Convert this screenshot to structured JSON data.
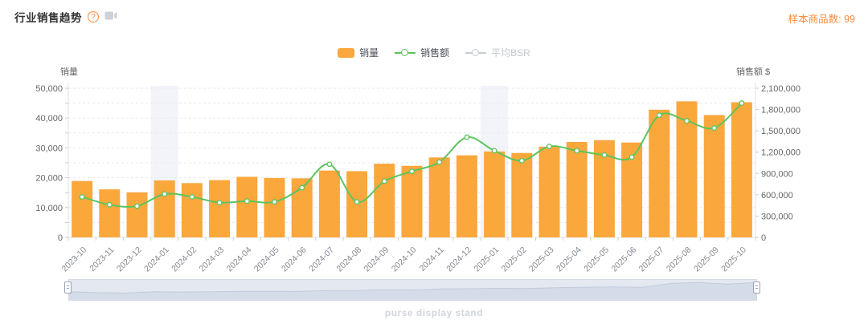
{
  "header": {
    "title": "行业销售趋势",
    "help_glyph": "?",
    "sample_label": "样本商品数:",
    "sample_value": "99",
    "accent_color": "#FF8A3C"
  },
  "legend": {
    "items": [
      {
        "label": "销量",
        "type": "bar",
        "color": "#FAA73C",
        "active": true
      },
      {
        "label": "销售额",
        "type": "line",
        "color": "#5CC45E",
        "active": true
      },
      {
        "label": "平均BSR",
        "type": "line",
        "color": "#C6CBD4",
        "active": false
      }
    ]
  },
  "chart_data": {
    "type": "bar",
    "subtype": "bar+line combo with dual y-axes",
    "title": "行业销售趋势",
    "categories": [
      "2023-10",
      "2023-11",
      "2023-12",
      "2024-01",
      "2024-02",
      "2024-03",
      "2024-04",
      "2024-05",
      "2024-06",
      "2024-07",
      "2024-08",
      "2024-09",
      "2024-10",
      "2024-11",
      "2024-12",
      "2025-01",
      "2025-02",
      "2025-03",
      "2025-04",
      "2025-05",
      "2025-06",
      "2025-07",
      "2025-08",
      "2025-09",
      "2025-10"
    ],
    "series": [
      {
        "name": "销量",
        "type": "bar",
        "y_axis": "left",
        "color": "#FAA73C",
        "values": [
          18900,
          16100,
          15100,
          19100,
          18200,
          19200,
          20300,
          19900,
          19800,
          22400,
          22200,
          24700,
          24000,
          26800,
          27500,
          28800,
          28300,
          30400,
          32000,
          32600,
          31800,
          42800,
          45600,
          41000,
          45300
        ]
      },
      {
        "name": "销售额",
        "type": "line",
        "y_axis": "right",
        "color": "#5CC45E",
        "smooth": true,
        "marker": "circle",
        "values": [
          570000,
          460000,
          440000,
          610000,
          570000,
          490000,
          510000,
          500000,
          700000,
          1030000,
          500000,
          790000,
          930000,
          1060000,
          1410000,
          1220000,
          1080000,
          1280000,
          1220000,
          1160000,
          1130000,
          1720000,
          1640000,
          1540000,
          1890000
        ]
      },
      {
        "name": "平均BSR",
        "type": "line",
        "y_axis": "right",
        "color": "#C6CBD4",
        "visible": false,
        "values": []
      }
    ],
    "left_axis": {
      "name": "销量",
      "min": 0,
      "max": 50000,
      "label_step": 10000,
      "grid_step": 5000
    },
    "right_axis": {
      "name": "销售额 $",
      "min": 0,
      "max": 2100000,
      "label_step": 300000
    },
    "highlight_categories": [
      "2024-01",
      "2025-01"
    ],
    "grid": "dashed horizontal gridlines",
    "legend_position": "top-center",
    "x_label_rotation": 45
  },
  "slider": {
    "range_start": "2023-10",
    "range_end": "2025-10"
  },
  "footer": {
    "text": "purse display stand"
  }
}
